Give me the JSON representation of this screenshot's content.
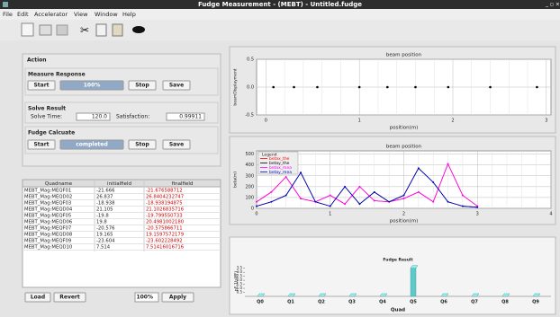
{
  "window": {
    "title": "Fudge Measurement - (MEBT) - Untitled.fudge"
  },
  "menu": [
    "File",
    "Edit",
    "Accelerator",
    "View",
    "Window",
    "Help"
  ],
  "action": {
    "title": "Action",
    "measure": {
      "title": "Measure Response",
      "start": "Start",
      "progress": "100%",
      "stop": "Stop",
      "save": "Save"
    },
    "solve": {
      "title": "Solve Result",
      "time_label": "Solve Time:",
      "time": "120.0",
      "satisfaction_label": "Satisfaction:",
      "satisfaction": "0.99911"
    },
    "fudge": {
      "title": "Fudge Calcuate",
      "start": "Start",
      "progress": "completed",
      "stop": "Stop",
      "save": "Save"
    }
  },
  "table": {
    "columns": [
      "Quadname",
      "initialfield",
      "finalfield"
    ],
    "rows": [
      [
        "MEBT_Mag:MEQF01",
        "-21.666",
        "-21.676588712"
      ],
      [
        "MEBT_Mag:MEQD02",
        "26.837",
        "26.8404232747"
      ],
      [
        "MEBT_Mag:MEQF03",
        "-18.938",
        "-18.938194875"
      ],
      [
        "MEBT_Mag:MEQD04",
        "21.105",
        "21.1026835716"
      ],
      [
        "MEBT_Mag:MEQF05",
        "-19.8",
        "-19.799550733"
      ],
      [
        "MEBT_Mag:MEQD06",
        "19.8",
        "20.4981002180"
      ],
      [
        "MEBT_Mag:MEQF07",
        "-20.576",
        "-20.575866711"
      ],
      [
        "MEBT_Mag:MEQD08",
        "19.165",
        "19.1597572179"
      ],
      [
        "MEBT_Mag:MEQF09",
        "-23.604",
        "-23.602228492"
      ],
      [
        "MEBT_Mag:MEQD10",
        "7.514",
        "7.51416016716"
      ]
    ]
  },
  "bottom": {
    "load": "Load",
    "revert": "Revert",
    "percent": "100%",
    "apply": "Apply"
  },
  "charts": [
    {
      "type": "scatter",
      "title": "beam position",
      "x_label": "position(m)",
      "y_label": "beamDisplayment",
      "x": [
        0.08,
        0.3,
        0.55,
        1.0,
        1.3,
        1.6,
        1.95,
        2.4,
        2.9
      ],
      "series": [
        {
          "color": "#000000",
          "values": [
            0,
            0,
            0,
            0,
            0,
            0,
            0,
            0,
            0
          ]
        }
      ],
      "xlim": [
        -0.1,
        3.05
      ],
      "xticks": [
        0,
        1,
        2,
        3
      ],
      "ylim": [
        -0.5,
        0.5
      ],
      "yticks": [
        0.5,
        {
          "value": 0,
          "label": "0.0"
        },
        -0.5
      ],
      "grid": true
    },
    {
      "type": "line",
      "title": "beam position",
      "x_label": "position(m)",
      "y_label": "beta(m)",
      "legend_title": "Legend",
      "legend": "upper left",
      "x": [
        0,
        0.2,
        0.4,
        0.6,
        0.8,
        1.0,
        1.2,
        1.4,
        1.6,
        1.8,
        2.0,
        2.2,
        2.4,
        2.6,
        2.8,
        3.0
      ],
      "series": [
        {
          "name": "betax_the",
          "color": "#ff0000",
          "values": [
            60,
            150,
            290,
            90,
            60,
            120,
            40,
            200,
            70,
            60,
            90,
            150,
            60,
            410,
            120,
            20
          ]
        },
        {
          "name": "betay_the",
          "color": "#000000",
          "values": [
            20,
            60,
            120,
            330,
            60,
            20,
            200,
            40,
            150,
            60,
            120,
            370,
            240,
            60,
            20,
            10
          ]
        },
        {
          "name": "betax_mea",
          "color": "#ff00ff",
          "values": [
            60,
            150,
            290,
            90,
            60,
            120,
            40,
            200,
            70,
            60,
            90,
            150,
            60,
            410,
            120,
            20
          ]
        },
        {
          "name": "betay_mea",
          "color": "#0000cc",
          "values": [
            20,
            60,
            120,
            330,
            60,
            20,
            200,
            40,
            150,
            60,
            120,
            370,
            240,
            60,
            20,
            10
          ]
        }
      ],
      "xlim": [
        0,
        4
      ],
      "xticks": [
        0,
        1,
        2,
        3,
        4
      ],
      "ylim": [
        0,
        530
      ],
      "yticks": [
        0,
        100,
        200,
        300,
        400,
        500
      ],
      "grid": true
    },
    {
      "type": "bar",
      "title": "Fudge Result",
      "x_label": "Quad",
      "y_label": "pF-1(sMF)",
      "categories": [
        "Q0",
        "Q1",
        "Q2",
        "Q3",
        "Q4",
        "Q5",
        "Q6",
        "Q7",
        "Q8",
        "Q9"
      ],
      "values": [
        0,
        0,
        0,
        0,
        0,
        3.5,
        0,
        0,
        0,
        0
      ],
      "color": "#5fc8c8",
      "ylim": [
        0,
        3.8
      ],
      "yticks": [
        0.5,
        {
          "value": 1,
          "label": "1.0"
        },
        1.5,
        {
          "value": 2,
          "label": "2.0"
        },
        2.5,
        {
          "value": 3,
          "label": "3.0"
        },
        3.5
      ],
      "grid": false
    }
  ]
}
